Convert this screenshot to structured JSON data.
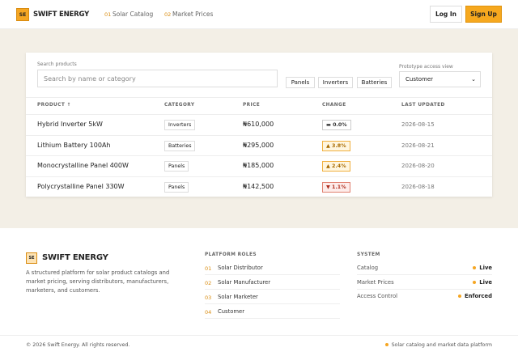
{
  "header": {
    "logo": "SE",
    "brand": "SWIFT ENERGY",
    "nav": [
      {
        "num": "01",
        "label": "Solar Catalog"
      },
      {
        "num": "02",
        "label": "Market Prices"
      }
    ],
    "login": "Log In",
    "signup": "Sign Up"
  },
  "search": {
    "label": "Search products",
    "placeholder": "Search by name or category",
    "filters": [
      "Panels",
      "Inverters",
      "Batteries"
    ],
    "access_label": "Prototype access view",
    "access_value": "Customer"
  },
  "table": {
    "columns": [
      "PRODUCT ↑",
      "CATEGORY",
      "PRICE",
      "CHANGE",
      "LAST UPDATED"
    ],
    "rows": [
      [
        "Hybrid Inverter 5kW",
        "Inverters",
        "₦610,000",
        "▬ 0.0%",
        "2026-08-15"
      ],
      [
        "Lithium Battery 100Ah",
        "Batteries",
        "₦295,000",
        "▲ 3.8%",
        "2026-08-21"
      ],
      [
        "Monocrystalline Panel 400W",
        "Panels",
        "₦185,000",
        "▲ 2.4%",
        "2026-08-20"
      ],
      [
        "Polycrystalline Panel 330W",
        "Panels",
        "₦142,500",
        "▼ 1.1%",
        "2026-08-18"
      ]
    ]
  },
  "footer": {
    "logo": "SE",
    "brand": "SWIFT ENERGY",
    "description": "A structured platform for solar product catalogs and market pricing, serving distributors, manufacturers, marketers, and customers.",
    "roles_title": "PLATFORM ROLES",
    "roles": [
      {
        "num": "01",
        "label": "Solar Distributor"
      },
      {
        "num": "02",
        "label": "Solar Manufacturer"
      },
      {
        "num": "03",
        "label": "Solar Marketer"
      },
      {
        "num": "04",
        "label": "Customer"
      }
    ],
    "system_title": "SYSTEM",
    "system": [
      {
        "label": "Catalog",
        "status": "Live"
      },
      {
        "label": "Market Prices",
        "status": "Live"
      },
      {
        "label": "Access Control",
        "status": "Enforced"
      }
    ],
    "copyright": "© 2026 Swift Energy. All rights reserved.",
    "tagline": "Solar catalog and market data platform"
  }
}
